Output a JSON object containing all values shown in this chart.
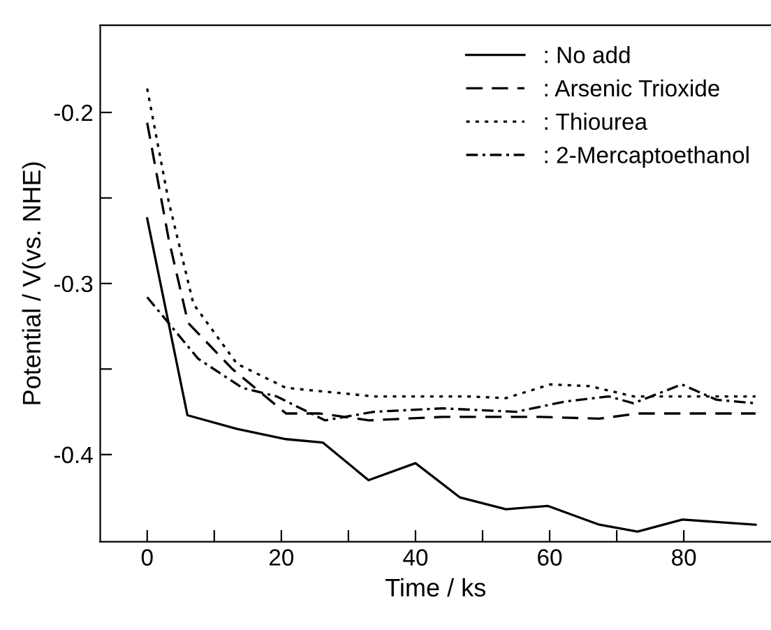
{
  "chart_data": {
    "type": "line",
    "xlabel": "Time / ks",
    "ylabel": "Potential / V(vs. NHE)",
    "xlim": [
      -7,
      93
    ],
    "ylim": [
      -0.451,
      -0.149
    ],
    "xticks": [
      0,
      {
        "value": 10,
        "label": null
      },
      20,
      {
        "value": 30,
        "label": null
      },
      40,
      {
        "value": 50,
        "label": null
      },
      60,
      {
        "value": 70,
        "label": null
      },
      80
    ],
    "yticks": [
      {
        "value": -0.4,
        "label": "-0.4"
      },
      {
        "value": -0.35,
        "label": null
      },
      {
        "value": -0.3,
        "label": "-0.3"
      },
      {
        "value": -0.25,
        "label": null
      },
      {
        "value": -0.2,
        "label": "-0.2"
      }
    ],
    "grid": false,
    "legend": "top right",
    "marker": "none",
    "series": [
      {
        "name": ": No add",
        "color": "#000000",
        "line_style": "solid",
        "x": [
          0,
          6,
          13.4,
          20.7,
          26.2,
          33,
          40,
          46.6,
          53.5,
          59.7,
          67.4,
          73.1,
          79.8,
          90.7
        ],
        "values": [
          -0.262,
          -0.377,
          -0.385,
          -0.391,
          -0.393,
          -0.415,
          -0.405,
          -0.425,
          -0.432,
          -0.43,
          -0.441,
          -0.445,
          -0.438,
          -0.441
        ]
      },
      {
        "name": ": Arsenic Trioxide",
        "color": "#000000",
        "line_style": "dashed",
        "x": [
          0,
          3.2,
          6.1,
          12.7,
          20.7,
          25.8,
          33.1,
          44,
          58.6,
          67.4,
          73.2,
          90.7
        ],
        "values": [
          -0.206,
          -0.274,
          -0.323,
          -0.35,
          -0.376,
          -0.376,
          -0.38,
          -0.378,
          -0.378,
          -0.379,
          -0.376,
          -0.376
        ]
      },
      {
        "name": ": Thiourea",
        "color": "#000000",
        "line_style": "dotted",
        "x": [
          0,
          3.2,
          6.9,
          13.4,
          20.7,
          33.8,
          47.7,
          53.5,
          60.1,
          66,
          72.5,
          90.7
        ],
        "values": [
          -0.186,
          -0.252,
          -0.312,
          -0.347,
          -0.361,
          -0.366,
          -0.366,
          -0.367,
          -0.359,
          -0.36,
          -0.366,
          -0.366
        ]
      },
      {
        "name": ": 2-Mercaptoethanol",
        "color": "#000000",
        "line_style": "dashdot",
        "x": [
          0,
          7.6,
          14.2,
          19.3,
          26.5,
          33.8,
          44,
          55,
          62.3,
          68.8,
          72.5,
          79.7,
          84.9,
          90.7
        ],
        "values": [
          -0.308,
          -0.344,
          -0.361,
          -0.366,
          -0.38,
          -0.375,
          -0.373,
          -0.375,
          -0.369,
          -0.366,
          -0.37,
          -0.359,
          -0.368,
          -0.37
        ]
      }
    ]
  }
}
